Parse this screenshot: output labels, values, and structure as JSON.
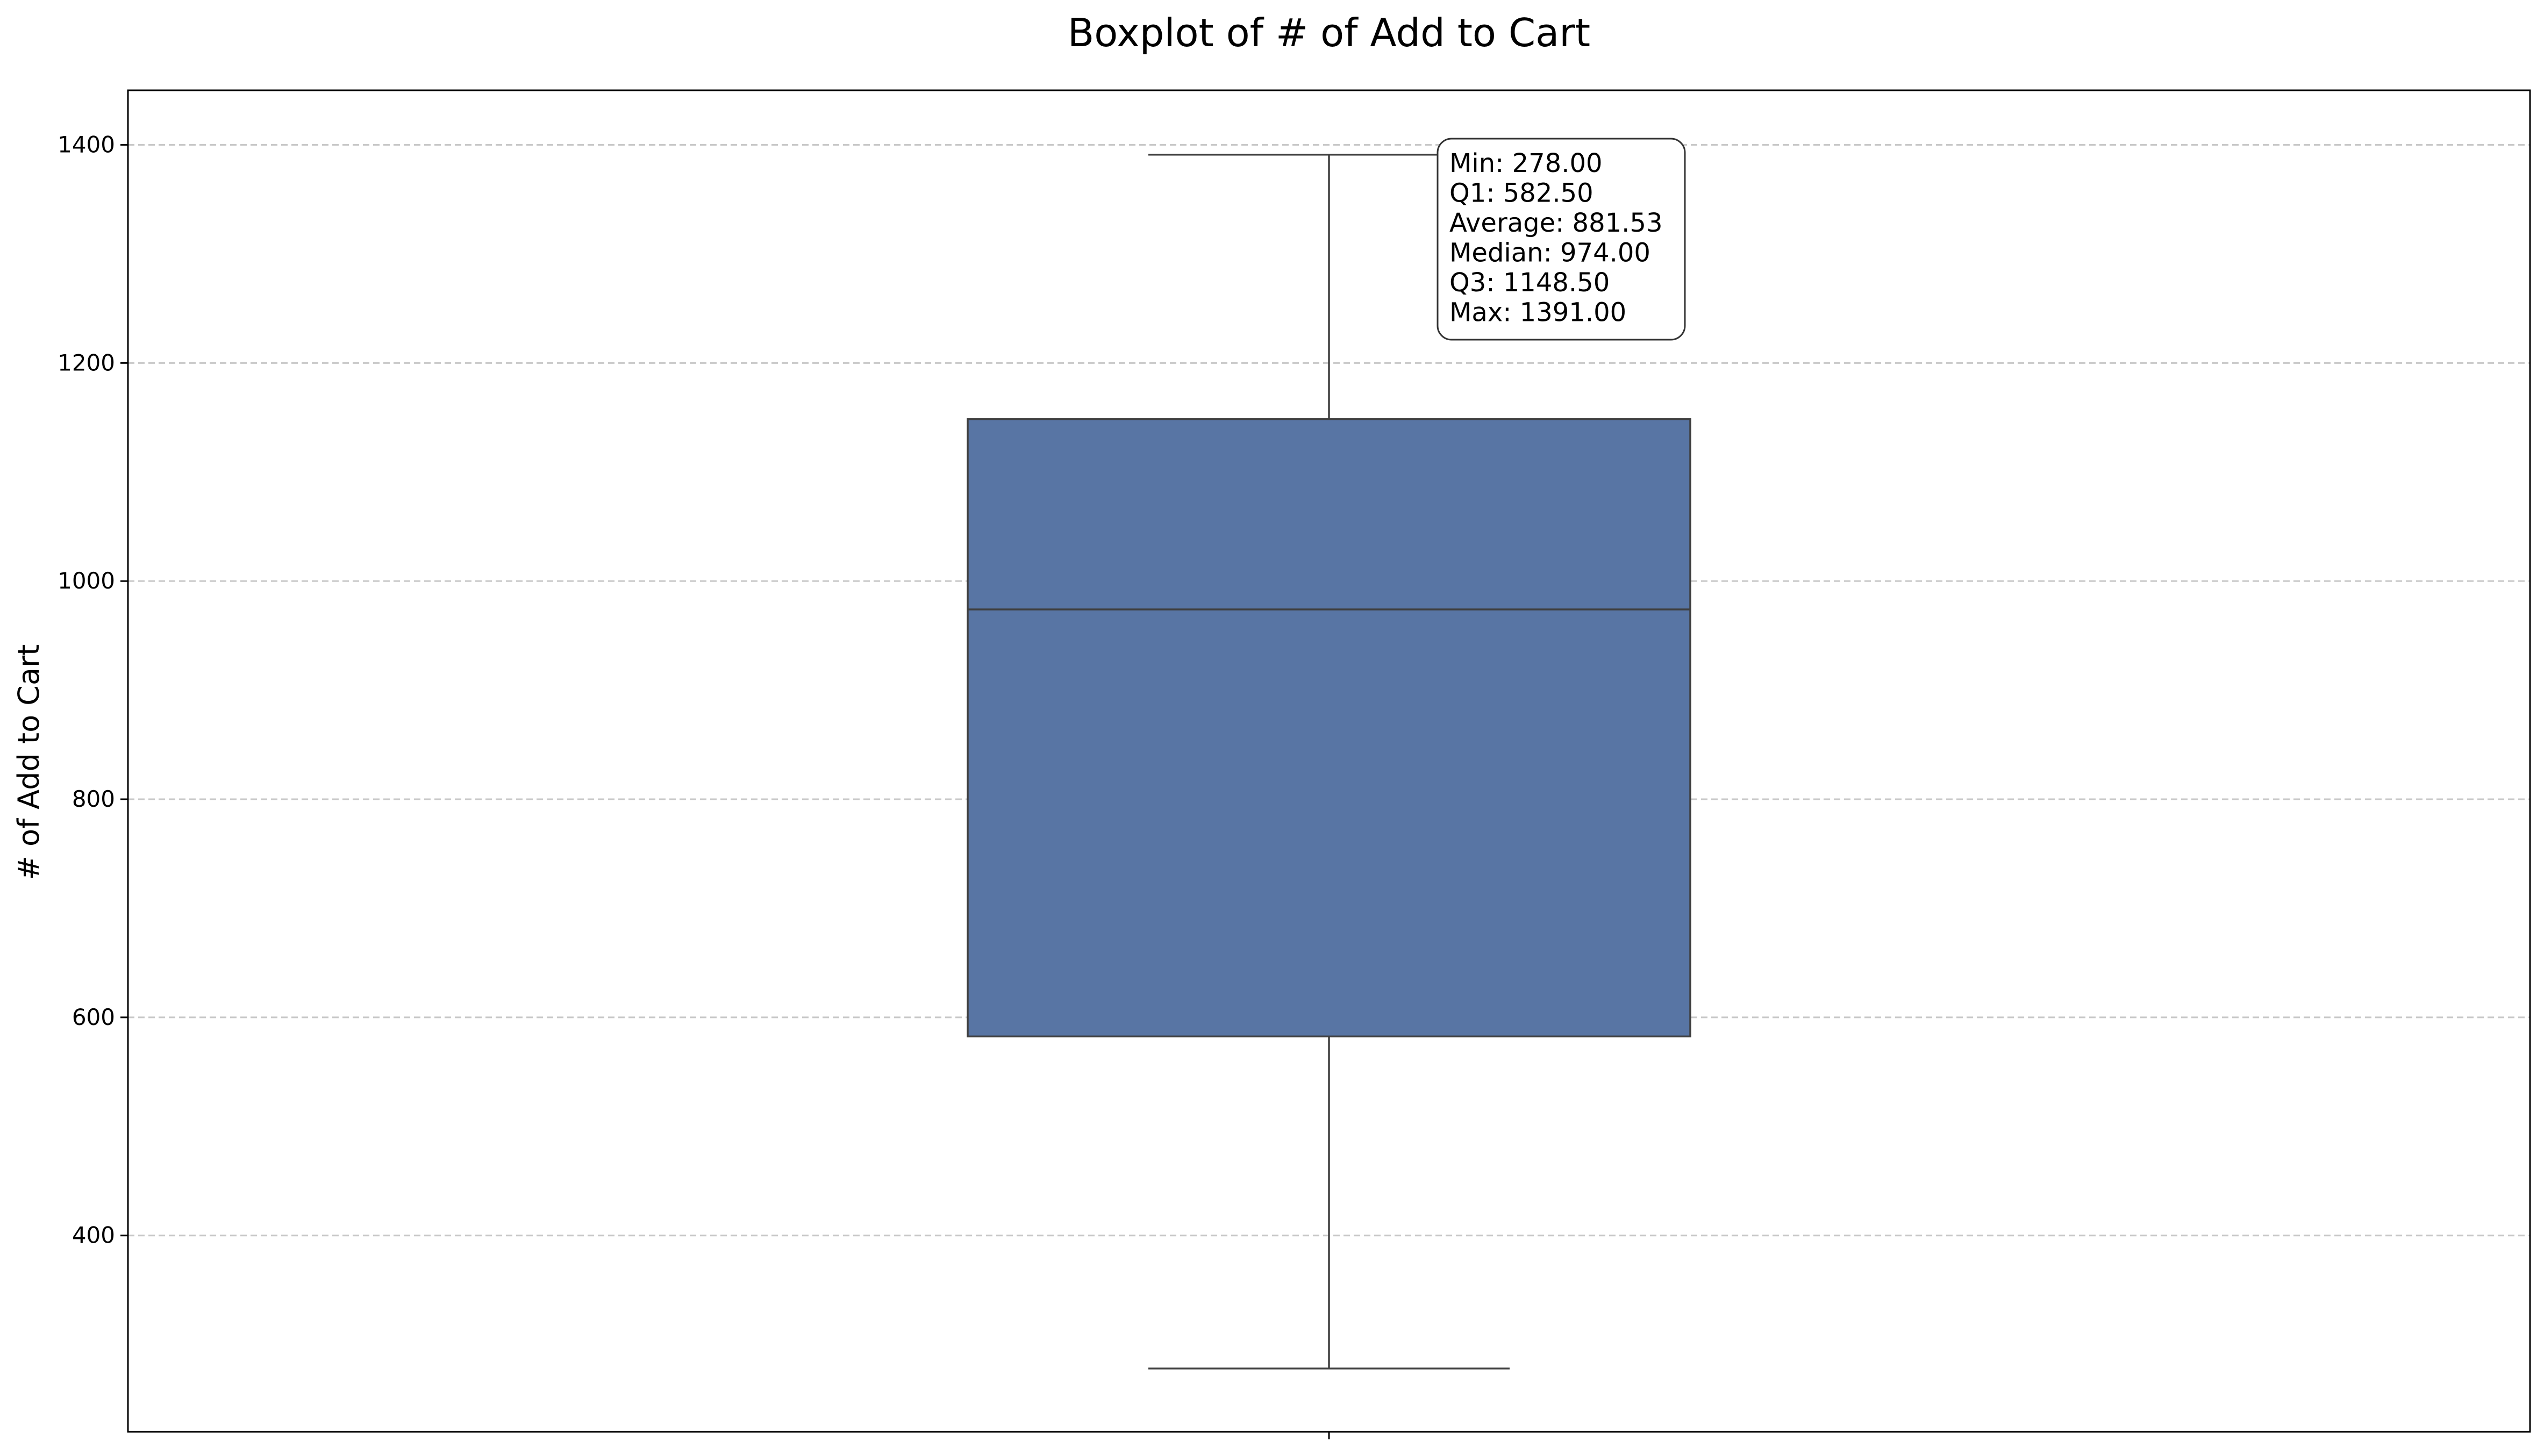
{
  "chart_data": {
    "type": "boxplot",
    "title": "Boxplot of # of Add to Cart",
    "xlabel": "",
    "ylabel": "# of Add to Cart",
    "ylim": [
      220,
      1450
    ],
    "yticks": [
      400,
      600,
      800,
      1000,
      1200,
      1400
    ],
    "grid": true,
    "box": {
      "min": 278.0,
      "q1": 582.5,
      "median": 974.0,
      "q3": 1148.5,
      "max": 1391.0,
      "average": 881.53,
      "color": "#5875a4",
      "edge_color": "#3f3f3f"
    },
    "stats_annotation": [
      "Min: 278.00",
      "Q1: 582.50",
      "Average: 881.53",
      "Median: 974.00",
      "Q3: 1148.50",
      "Max: 1391.00"
    ]
  }
}
